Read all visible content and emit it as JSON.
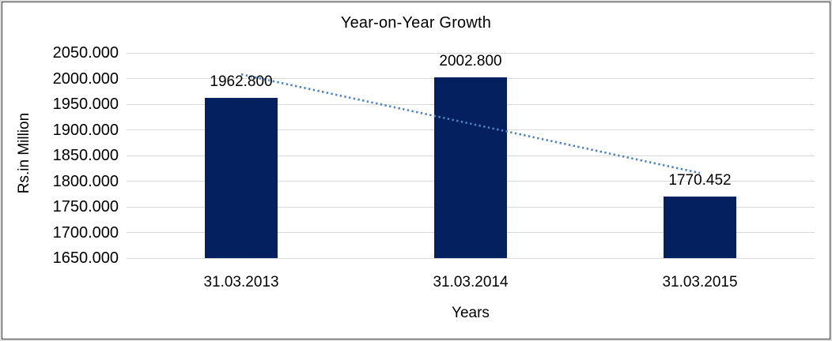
{
  "chart_data": {
    "type": "bar",
    "title": "Year-on-Year Growth",
    "xlabel": "Years",
    "ylabel": "Rs.in Million",
    "categories": [
      "31.03.2013",
      "31.03.2014",
      "31.03.2015"
    ],
    "values": [
      1962.8,
      2002.8,
      1770.452
    ],
    "data_labels": [
      "1962.800",
      "2002.800",
      "1770.452"
    ],
    "ylim": [
      1650,
      2050
    ],
    "ytick_step": 50,
    "yticks": [
      "2050.000",
      "2000.000",
      "1950.000",
      "1900.000",
      "1850.000",
      "1800.000",
      "1750.000",
      "1700.000",
      "1650.000"
    ],
    "grid": true,
    "legend": "none",
    "trendline": {
      "kind": "linear-dotted",
      "start_value": 2008.2,
      "end_value": 1815.9
    },
    "colors": {
      "bar": "#04205f",
      "trendline": "#4e82c2",
      "gridline": "#d9d9d9",
      "text": "#000000",
      "frame_outer": "#d9d9d9",
      "frame_inner": "#454545",
      "background": "#ffffff"
    }
  }
}
